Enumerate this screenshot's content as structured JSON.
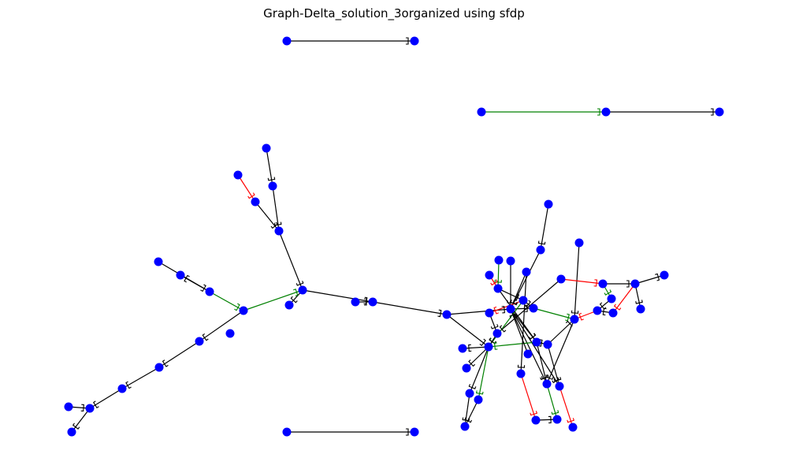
{
  "figure": {
    "title": "Graph-Delta_solution_3organized using sfdp"
  },
  "colors": {
    "node": "#0000ff",
    "edge_default": "#000000",
    "edge_red": "#ff0000",
    "edge_green": "#008000",
    "background": "#ffffff"
  },
  "graph": {
    "node_count": 79,
    "edge_count": 87,
    "edge_color_legend": [
      "black",
      "red",
      "green"
    ]
  }
}
